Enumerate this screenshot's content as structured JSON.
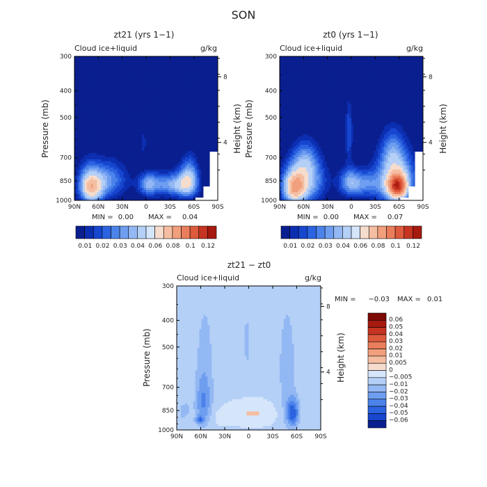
{
  "page_title": "SON",
  "colors": {
    "background": "#ffffff",
    "cold_ramp": [
      "#0a1f8f",
      "#0c2eb0",
      "#1746cf",
      "#2c63e0",
      "#4c83ea",
      "#6f9ef0",
      "#93b8f3",
      "#b5d0f7",
      "#d5e5fa"
    ],
    "warm_ramp": [
      "#f6dccd",
      "#f5bea2",
      "#f19f7c",
      "#ea7d5b",
      "#de5a3c",
      "#c63422",
      "#a71a10",
      "#7d0a05"
    ]
  },
  "chart_data": [
    {
      "id": "zt21",
      "type": "heatmap",
      "title": "zt21 (yrs 1−1)",
      "subtitle_left": "Cloud ice+liquid",
      "subtitle_right": "g/kg",
      "ylabel": "Pressure (mb)",
      "ylabel_right": "Height (km)",
      "yticks": [
        "300",
        "400",
        "500",
        "700",
        "850",
        "1000"
      ],
      "ytick_values": [
        300,
        400,
        500,
        700,
        850,
        1000
      ],
      "yticks_right": [
        "8",
        "4"
      ],
      "xticks": [
        "90N",
        "60N",
        "30N",
        "0",
        "30S",
        "60S",
        "90S"
      ],
      "xlim": [
        90,
        -90
      ],
      "ylim": [
        300,
        1000
      ],
      "stats": {
        "min_label": "MIN =",
        "min": "0.00",
        "max_label": "MAX =",
        "max": "0.04"
      },
      "colorbar": {
        "orientation": "horizontal",
        "labels": [
          "0.01",
          "0.02",
          "0.03",
          "0.04",
          "0.06",
          "0.08",
          "0.1",
          "0.12"
        ]
      },
      "features": [
        {
          "lat": 68,
          "p": 905,
          "dlat": 14,
          "dp": 110,
          "v": 0.04
        },
        {
          "lat": 48,
          "p": 842,
          "dlat": 24,
          "dp": 130,
          "v": 0.028
        },
        {
          "lat": 72,
          "p": 860,
          "dlat": 14,
          "dp": 160,
          "v": 0.02
        },
        {
          "lat": -2,
          "p": 875,
          "dlat": 12,
          "dp": 80,
          "v": 0.025
        },
        {
          "lat": -20,
          "p": 872,
          "dlat": 22,
          "dp": 95,
          "v": 0.02
        },
        {
          "lat": -52,
          "p": 862,
          "dlat": 14,
          "dp": 115,
          "v": 0.036
        },
        {
          "lat": -38,
          "p": 880,
          "dlat": 18,
          "dp": 70,
          "v": 0.018
        },
        {
          "lat": -55,
          "p": 780,
          "dlat": 10,
          "dp": 140,
          "v": 0.014
        },
        {
          "lat": 3,
          "p": 620,
          "dlat": 3,
          "dp": 70,
          "v": 0.012
        }
      ]
    },
    {
      "id": "zt0",
      "type": "heatmap",
      "title": "zt0 (yrs 1−1)",
      "subtitle_left": "Cloud ice+liquid",
      "subtitle_right": "g/kg",
      "ylabel": "Pressure (mb)",
      "ylabel_right": "Height (km)",
      "yticks": [
        "300",
        "400",
        "500",
        "700",
        "850",
        "1000"
      ],
      "ytick_values": [
        300,
        400,
        500,
        700,
        850,
        1000
      ],
      "yticks_right": [
        "8",
        "4"
      ],
      "xticks": [
        "90N",
        "60N",
        "30N",
        "0",
        "30S",
        "60S",
        "90S"
      ],
      "xlim": [
        90,
        -90
      ],
      "ylim": [
        300,
        1000
      ],
      "stats": {
        "min_label": "MIN =",
        "min": "0.00",
        "max_label": "MAX =",
        "max": "0.07"
      },
      "colorbar": {
        "orientation": "horizontal",
        "labels": [
          "0.01",
          "0.02",
          "0.03",
          "0.04",
          "0.06",
          "0.08",
          "0.1",
          "0.12"
        ]
      },
      "features": [
        {
          "lat": 72,
          "p": 905,
          "dlat": 14,
          "dp": 120,
          "v": 0.05
        },
        {
          "lat": 58,
          "p": 845,
          "dlat": 24,
          "dp": 160,
          "v": 0.04
        },
        {
          "lat": 58,
          "p": 700,
          "dlat": 16,
          "dp": 110,
          "v": 0.018
        },
        {
          "lat": 2,
          "p": 860,
          "dlat": 14,
          "dp": 100,
          "v": 0.03
        },
        {
          "lat": 3,
          "p": 570,
          "dlat": 5,
          "dp": 150,
          "v": 0.018
        },
        {
          "lat": -18,
          "p": 872,
          "dlat": 18,
          "dp": 95,
          "v": 0.022
        },
        {
          "lat": -58,
          "p": 890,
          "dlat": 12,
          "dp": 90,
          "v": 0.07
        },
        {
          "lat": -55,
          "p": 830,
          "dlat": 24,
          "dp": 190,
          "v": 0.045
        },
        {
          "lat": -52,
          "p": 650,
          "dlat": 14,
          "dp": 120,
          "v": 0.016
        }
      ]
    },
    {
      "id": "diff",
      "type": "heatmap",
      "title": "zt21 − zt0",
      "subtitle_left": "Cloud ice+liquid",
      "subtitle_right": "g/kg",
      "ylabel": "Pressure (mb)",
      "ylabel_right": "Height (km)",
      "yticks": [
        "300",
        "400",
        "500",
        "700",
        "850",
        "1000"
      ],
      "ytick_values": [
        300,
        400,
        500,
        700,
        850,
        1000
      ],
      "yticks_right": [
        "8",
        "4"
      ],
      "xticks": [
        "90N",
        "60N",
        "30N",
        "0",
        "30S",
        "60S",
        "90S"
      ],
      "xlim": [
        90,
        -90
      ],
      "ylim": [
        300,
        1000
      ],
      "stats": {
        "min_label": "MIN =",
        "min": "−0.03",
        "max_label": "MAX =",
        "max": "0.01"
      },
      "colorbar": {
        "orientation": "vertical",
        "labels": [
          "0.06",
          "0.05",
          "0.04",
          "0.03",
          "0.02",
          "0.01",
          "0.005",
          "0",
          "−0.005",
          "−0.01",
          "−0.02",
          "−0.03",
          "−0.04",
          "−0.05",
          "−0.06"
        ]
      },
      "features": [
        {
          "lat": 55,
          "p": 600,
          "dlat": 13,
          "dp": 330,
          "v": -0.007
        },
        {
          "lat": -48,
          "p": 600,
          "dlat": 13,
          "dp": 330,
          "v": -0.007
        },
        {
          "lat": 2,
          "p": 480,
          "dlat": 6,
          "dp": 140,
          "v": -0.006
        },
        {
          "lat": 57,
          "p": 800,
          "dlat": 9,
          "dp": 150,
          "v": -0.011
        },
        {
          "lat": -55,
          "p": 870,
          "dlat": 8,
          "dp": 100,
          "v": -0.022
        },
        {
          "lat": 80,
          "p": 860,
          "dlat": 8,
          "dp": 70,
          "v": -0.008
        },
        {
          "lat": -5,
          "p": 870,
          "dlat": 28,
          "dp": 70,
          "v": 0.006
        },
        {
          "lat": 75,
          "p": 890,
          "dlat": 5,
          "dp": 30,
          "v": 0.004
        },
        {
          "lat": 62,
          "p": 920,
          "dlat": 5,
          "dp": 30,
          "v": -0.015
        },
        {
          "lat": 35,
          "p": 900,
          "dlat": 10,
          "dp": 50,
          "v": 0.003
        }
      ]
    }
  ]
}
